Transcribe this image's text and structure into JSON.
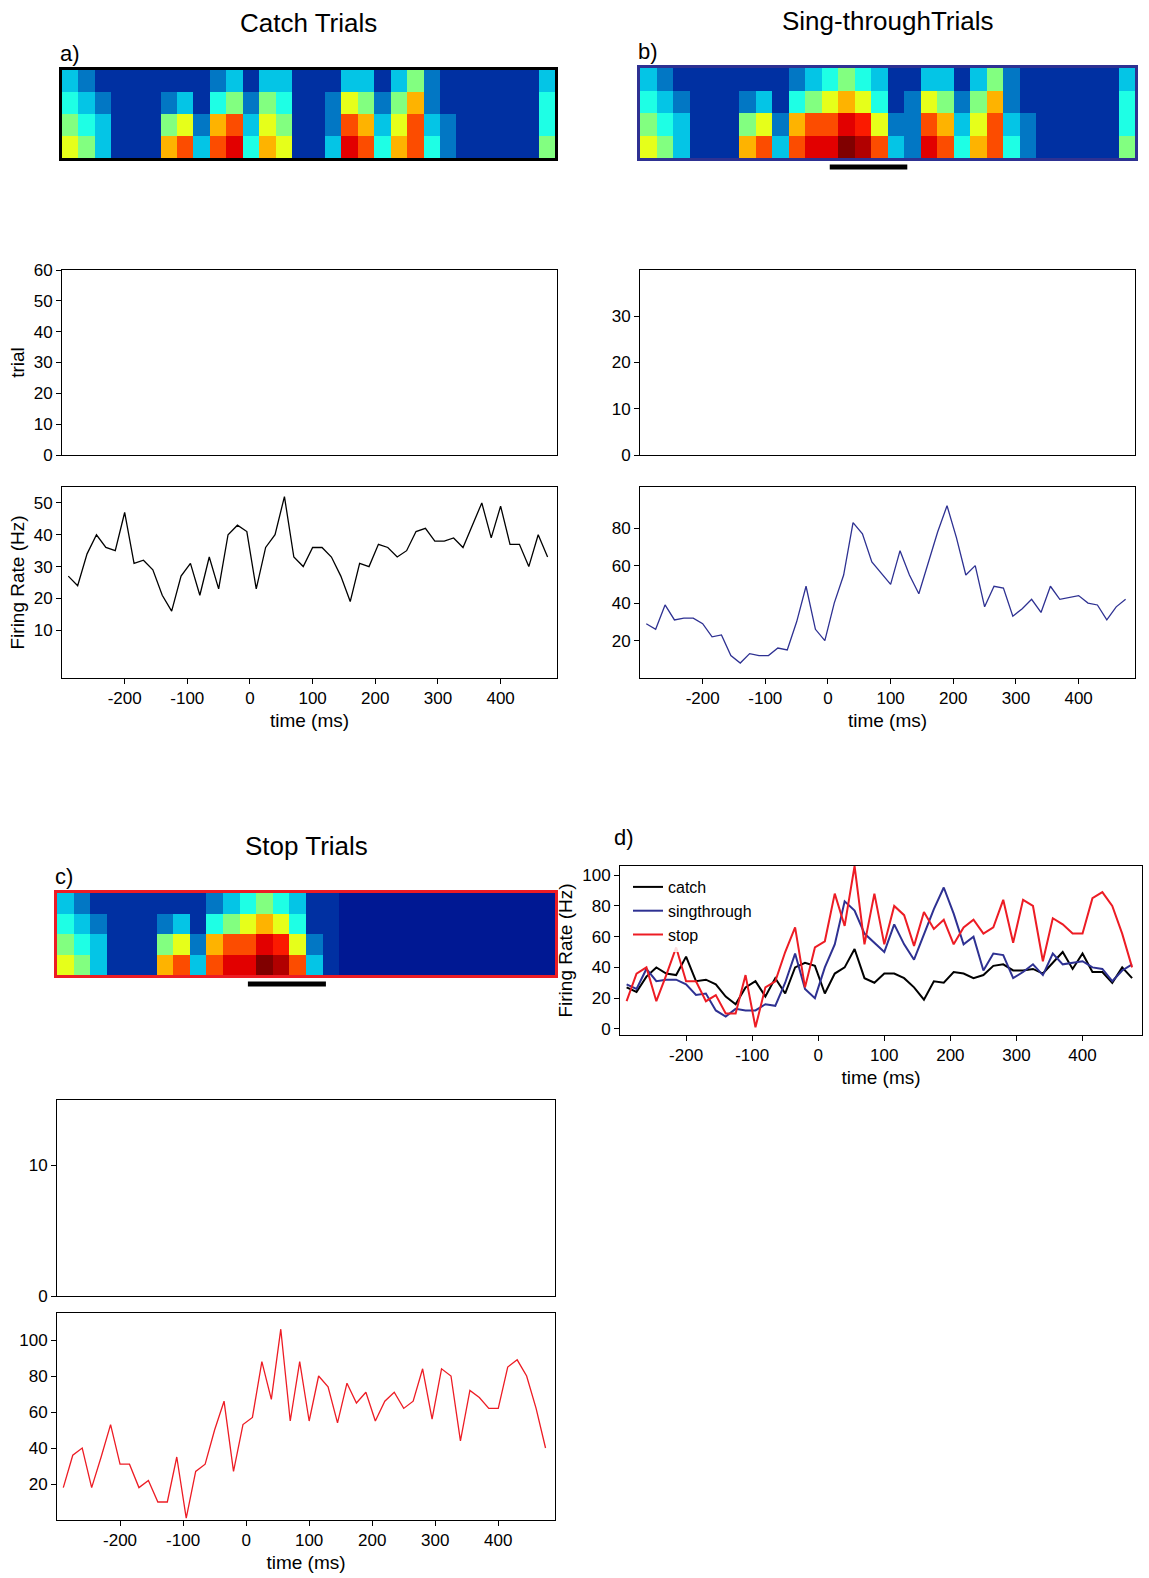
{
  "chart_data": [
    {
      "type": "heatmap",
      "title": "Catch Trials",
      "panel_label": "a)",
      "color": "#000000",
      "xlim": [
        -0.5,
        29.5
      ],
      "ylim": [
        -0.5,
        3.5
      ],
      "zlim": [
        0,
        1
      ],
      "tick_labels": false,
      "cells": [
        [
          0.6,
          0.5,
          0.3,
          0.1,
          0.1,
          0.1,
          0.7,
          0.8,
          0.3,
          0.8,
          0.9,
          0.4,
          0.7,
          0.6,
          0.1,
          0.1,
          0.3,
          0.9,
          0.8,
          0.4,
          0.7,
          0.8,
          0.4,
          0.2,
          0.1,
          0.1,
          0.1,
          0.1,
          0.1,
          0.5
        ],
        [
          0.5,
          0.4,
          0.3,
          0.1,
          0.1,
          0.1,
          0.5,
          0.6,
          0.2,
          0.7,
          0.8,
          0.3,
          0.6,
          0.5,
          0.1,
          0.1,
          0.2,
          0.8,
          0.7,
          0.3,
          0.6,
          0.8,
          0.3,
          0.2,
          0.1,
          0.1,
          0.1,
          0.1,
          0.1,
          0.4
        ],
        [
          0.4,
          0.3,
          0.2,
          0.1,
          0.1,
          0.1,
          0.2,
          0.3,
          0.1,
          0.4,
          0.5,
          0.2,
          0.5,
          0.4,
          0.1,
          0.1,
          0.2,
          0.6,
          0.5,
          0.2,
          0.5,
          0.7,
          0.2,
          0.1,
          0.1,
          0.1,
          0.1,
          0.1,
          0.1,
          0.4
        ],
        [
          0.3,
          0.2,
          0.1,
          0.1,
          0.1,
          0.1,
          0.1,
          0.1,
          0.1,
          0.2,
          0.3,
          0.1,
          0.3,
          0.3,
          0.1,
          0.1,
          0.1,
          0.3,
          0.3,
          0.1,
          0.3,
          0.5,
          0.2,
          0.1,
          0.1,
          0.1,
          0.1,
          0.1,
          0.1,
          0.3
        ]
      ]
    },
    {
      "type": "raster",
      "y_label": "trial",
      "xlim": [
        -300,
        490
      ],
      "ylim": [
        0,
        60
      ],
      "yticks": [
        0,
        10,
        20,
        30,
        40,
        50,
        60
      ],
      "tick_labels": "y"
    },
    {
      "type": "line",
      "color": "#000000",
      "y_label": "Firing Rate (Hz)",
      "x_label": "time (ms)",
      "xlim": [
        -300,
        490
      ],
      "xticks": [
        -200,
        -100,
        0,
        100,
        200,
        300,
        400
      ],
      "ylim": [
        -5,
        55
      ],
      "yticks": [
        10,
        20,
        30,
        40,
        50
      ],
      "x": [
        -290,
        -275,
        -260,
        -245,
        -230,
        -215,
        -200,
        -185,
        -170,
        -155,
        -140,
        -125,
        -110,
        -95,
        -80,
        -65,
        -50,
        -35,
        -20,
        -5,
        10,
        25,
        40,
        55,
        70,
        85,
        100,
        115,
        130,
        145,
        160,
        175,
        190,
        205,
        220,
        235,
        250,
        265,
        280,
        295,
        310,
        325,
        340,
        355,
        370,
        385,
        400,
        415,
        430,
        445,
        460,
        475
      ],
      "values": [
        27,
        24,
        34,
        40,
        36,
        35,
        47,
        31,
        32,
        29,
        21,
        16,
        27,
        31,
        21,
        33,
        23,
        40,
        43,
        41,
        23,
        36,
        40,
        52,
        33,
        30,
        36,
        36,
        33,
        27,
        19,
        31,
        30,
        37,
        36,
        33,
        35,
        41,
        42,
        38,
        38,
        39,
        36,
        43,
        50,
        39,
        49,
        37,
        37,
        30,
        40,
        33
      ]
    },
    {
      "type": "heatmap",
      "title": "Sing-throughTrials",
      "panel_label": "b)",
      "color": "#2e3192",
      "xlim": [
        -0.5,
        29.5
      ],
      "ylim": [
        -0.5,
        3.5
      ],
      "zlim": [
        0,
        1
      ],
      "tick_labels": false,
      "bar": [
        11,
        15.7
      ],
      "cells": [
        [
          0.6,
          0.5,
          0.3,
          0.1,
          0.1,
          0.1,
          0.7,
          0.8,
          0.3,
          0.8,
          0.9,
          0.9,
          1.0,
          0.95,
          0.8,
          0.3,
          0.2,
          0.9,
          0.8,
          0.4,
          0.7,
          0.8,
          0.4,
          0.2,
          0.1,
          0.1,
          0.1,
          0.1,
          0.1,
          0.5
        ],
        [
          0.5,
          0.4,
          0.3,
          0.1,
          0.1,
          0.1,
          0.5,
          0.6,
          0.2,
          0.7,
          0.8,
          0.8,
          0.9,
          0.85,
          0.6,
          0.2,
          0.2,
          0.8,
          0.7,
          0.3,
          0.6,
          0.8,
          0.3,
          0.2,
          0.1,
          0.1,
          0.1,
          0.1,
          0.1,
          0.4
        ],
        [
          0.4,
          0.3,
          0.2,
          0.1,
          0.1,
          0.1,
          0.2,
          0.3,
          0.1,
          0.4,
          0.5,
          0.6,
          0.7,
          0.6,
          0.4,
          0.1,
          0.2,
          0.6,
          0.5,
          0.2,
          0.5,
          0.7,
          0.2,
          0.1,
          0.1,
          0.1,
          0.1,
          0.1,
          0.1,
          0.4
        ],
        [
          0.3,
          0.2,
          0.1,
          0.1,
          0.1,
          0.1,
          0.1,
          0.1,
          0.1,
          0.2,
          0.3,
          0.4,
          0.5,
          0.4,
          0.3,
          0.1,
          0.1,
          0.3,
          0.3,
          0.1,
          0.3,
          0.5,
          0.2,
          0.1,
          0.1,
          0.1,
          0.1,
          0.1,
          0.1,
          0.3
        ]
      ]
    },
    {
      "type": "raster",
      "xlim": [
        -300,
        490
      ],
      "ylim": [
        0,
        40
      ],
      "yticks": [
        0,
        10,
        20,
        30
      ],
      "tick_labels": "y"
    },
    {
      "type": "line",
      "color": "#2e3192",
      "x_label": "time (ms)",
      "xlim": [
        -300,
        490
      ],
      "xticks": [
        -200,
        -100,
        0,
        100,
        200,
        300,
        400
      ],
      "ylim": [
        0,
        102
      ],
      "yticks": [
        20,
        40,
        60,
        80
      ],
      "x": [
        -290,
        -275,
        -260,
        -245,
        -230,
        -215,
        -200,
        -185,
        -170,
        -155,
        -140,
        -125,
        -110,
        -95,
        -80,
        -65,
        -50,
        -35,
        -20,
        -5,
        10,
        25,
        40,
        55,
        70,
        85,
        100,
        115,
        130,
        145,
        160,
        175,
        190,
        205,
        220,
        235,
        250,
        265,
        280,
        295,
        310,
        325,
        340,
        355,
        370,
        385,
        400,
        415,
        430,
        445,
        460,
        475
      ],
      "values": [
        29,
        26,
        39,
        31,
        32,
        32,
        29,
        22,
        23,
        12,
        8,
        13,
        12,
        12,
        16,
        15,
        30,
        49,
        26,
        20,
        40,
        55,
        83,
        77,
        62,
        56,
        50,
        68,
        55,
        45,
        62,
        78,
        92,
        75,
        55,
        60,
        38,
        49,
        48,
        33,
        37,
        42,
        35,
        49,
        42,
        43,
        44,
        40,
        39,
        31,
        38,
        42
      ]
    },
    {
      "type": "heatmap",
      "title": "Stop Trials",
      "panel_label": "c)",
      "color": "#ed1c24",
      "xlim": [
        -0.5,
        29.5
      ],
      "ylim": [
        -0.5,
        3.5
      ],
      "zlim": [
        0,
        1
      ],
      "tick_labels": false,
      "bar": [
        11,
        15.7
      ],
      "cells": [
        [
          0.6,
          0.5,
          0.3,
          0.1,
          0.1,
          0.1,
          0.7,
          0.8,
          0.3,
          0.8,
          0.9,
          0.9,
          1.0,
          0.95,
          0.8,
          0.3,
          0.1,
          0.05,
          0.05,
          0.05,
          0.05,
          0.05,
          0.05,
          0.05,
          0.05,
          0.05,
          0.05,
          0.05,
          0.05,
          0.05
        ],
        [
          0.5,
          0.4,
          0.3,
          0.1,
          0.1,
          0.1,
          0.5,
          0.6,
          0.2,
          0.7,
          0.8,
          0.8,
          0.9,
          0.85,
          0.6,
          0.2,
          0.1,
          0.05,
          0.05,
          0.05,
          0.05,
          0.05,
          0.05,
          0.05,
          0.05,
          0.05,
          0.05,
          0.05,
          0.05,
          0.05
        ],
        [
          0.4,
          0.3,
          0.2,
          0.1,
          0.1,
          0.1,
          0.2,
          0.3,
          0.1,
          0.4,
          0.5,
          0.6,
          0.7,
          0.6,
          0.4,
          0.1,
          0.1,
          0.05,
          0.05,
          0.05,
          0.05,
          0.05,
          0.05,
          0.05,
          0.05,
          0.05,
          0.05,
          0.05,
          0.05,
          0.05
        ],
        [
          0.3,
          0.2,
          0.1,
          0.1,
          0.1,
          0.1,
          0.1,
          0.1,
          0.1,
          0.2,
          0.3,
          0.4,
          0.5,
          0.4,
          0.3,
          0.1,
          0.1,
          0.05,
          0.05,
          0.05,
          0.05,
          0.05,
          0.05,
          0.05,
          0.05,
          0.05,
          0.05,
          0.05,
          0.05,
          0.05
        ]
      ]
    },
    {
      "type": "raster",
      "xlim": [
        -300,
        490
      ],
      "ylim": [
        0,
        15
      ],
      "yticks": [
        0,
        10
      ],
      "tick_labels": "y"
    },
    {
      "type": "line",
      "color": "#ed1c24",
      "x_label": "time (ms)",
      "xlim": [
        -300,
        490
      ],
      "xticks": [
        -200,
        -100,
        0,
        100,
        200,
        300,
        400
      ],
      "ylim": [
        0,
        115
      ],
      "yticks": [
        20,
        40,
        60,
        80,
        100
      ],
      "x": [
        -290,
        -275,
        -260,
        -245,
        -230,
        -215,
        -200,
        -185,
        -170,
        -155,
        -140,
        -125,
        -110,
        -95,
        -80,
        -65,
        -50,
        -35,
        -20,
        -5,
        10,
        25,
        40,
        55,
        70,
        85,
        100,
        115,
        130,
        145,
        160,
        175,
        190,
        205,
        220,
        235,
        250,
        265,
        280,
        295,
        310,
        325,
        340,
        355,
        370,
        385,
        400,
        415,
        430,
        445,
        460,
        475
      ],
      "values": [
        18,
        36,
        40,
        18,
        35,
        53,
        31,
        31,
        18,
        22,
        10,
        10,
        35,
        1,
        27,
        31,
        50,
        66,
        27,
        53,
        57,
        88,
        67,
        106,
        55,
        88,
        55,
        80,
        74,
        54,
        76,
        65,
        71,
        55,
        66,
        71,
        62,
        66,
        84,
        56,
        84,
        80,
        44,
        72,
        68,
        62,
        62,
        85,
        89,
        80,
        62,
        40
      ]
    },
    {
      "type": "line",
      "panel_label": "d)",
      "legend": "top left",
      "y_label": "Firing Rate (Hz)",
      "x_label": "time (ms)",
      "xlim": [
        -300,
        490
      ],
      "xticks": [
        -200,
        -100,
        0,
        100,
        200,
        300,
        400
      ],
      "ylim": [
        -4,
        106
      ],
      "yticks": [
        0,
        20,
        40,
        60,
        80,
        100
      ],
      "x": [
        -290,
        -275,
        -260,
        -245,
        -230,
        -215,
        -200,
        -185,
        -170,
        -155,
        -140,
        -125,
        -110,
        -95,
        -80,
        -65,
        -50,
        -35,
        -20,
        -5,
        10,
        25,
        40,
        55,
        70,
        85,
        100,
        115,
        130,
        145,
        160,
        175,
        190,
        205,
        220,
        235,
        250,
        265,
        280,
        295,
        310,
        325,
        340,
        355,
        370,
        385,
        400,
        415,
        430,
        445,
        460,
        475
      ],
      "series": [
        {
          "name": "catch",
          "color": "#000000",
          "values": [
            27,
            24,
            34,
            40,
            36,
            35,
            47,
            31,
            32,
            29,
            21,
            16,
            27,
            31,
            21,
            33,
            23,
            40,
            43,
            41,
            23,
            36,
            40,
            52,
            33,
            30,
            36,
            36,
            33,
            27,
            19,
            31,
            30,
            37,
            36,
            33,
            35,
            41,
            42,
            38,
            38,
            39,
            36,
            43,
            50,
            39,
            49,
            37,
            37,
            30,
            40,
            33
          ]
        },
        {
          "name": "singthrough",
          "color": "#2e3192",
          "values": [
            29,
            26,
            39,
            31,
            32,
            32,
            29,
            22,
            23,
            12,
            8,
            13,
            12,
            12,
            16,
            15,
            30,
            49,
            26,
            20,
            40,
            55,
            83,
            77,
            62,
            56,
            50,
            68,
            55,
            45,
            62,
            78,
            92,
            75,
            55,
            60,
            38,
            49,
            48,
            33,
            37,
            42,
            35,
            49,
            42,
            43,
            44,
            40,
            39,
            31,
            38,
            42
          ]
        },
        {
          "name": "stop",
          "color": "#ed1c24",
          "values": [
            18,
            36,
            40,
            18,
            35,
            53,
            31,
            31,
            18,
            22,
            10,
            10,
            35,
            1,
            27,
            31,
            50,
            66,
            27,
            53,
            57,
            88,
            67,
            106,
            55,
            88,
            55,
            80,
            74,
            54,
            76,
            65,
            71,
            55,
            66,
            71,
            62,
            66,
            84,
            56,
            84,
            80,
            44,
            72,
            68,
            62,
            62,
            85,
            89,
            80,
            62,
            40
          ]
        }
      ]
    }
  ]
}
